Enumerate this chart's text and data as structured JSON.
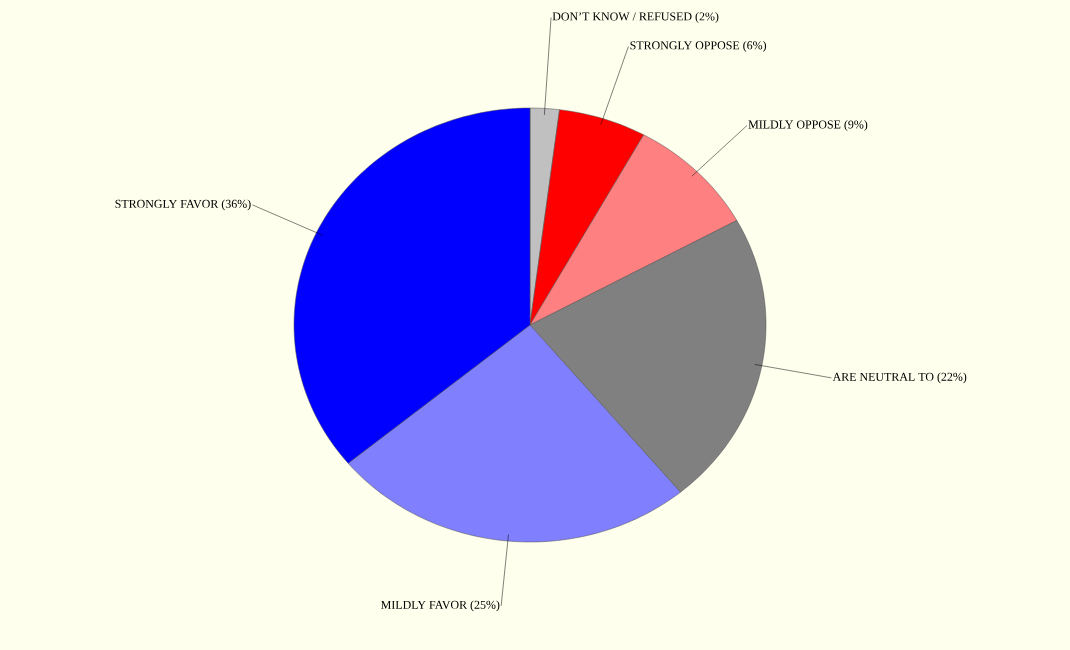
{
  "chart_data": {
    "type": "pie",
    "categories": [
      "DON’T KNOW / REFUSED (2%)",
      "STRONGLY OPPOSE (6%)",
      "MILDLY OPPOSE (9%)",
      "ARE NEUTRAL TO (22%)",
      "MILDLY FAVOR (25%)",
      "STRONGLY FAVOR (36%)"
    ],
    "values": [
      2,
      6,
      9,
      22,
      25,
      36
    ],
    "colors": [
      "#c0c0c0",
      "#ff0000",
      "#ff8080",
      "#808080",
      "#8080ff",
      "#0000ff"
    ]
  }
}
